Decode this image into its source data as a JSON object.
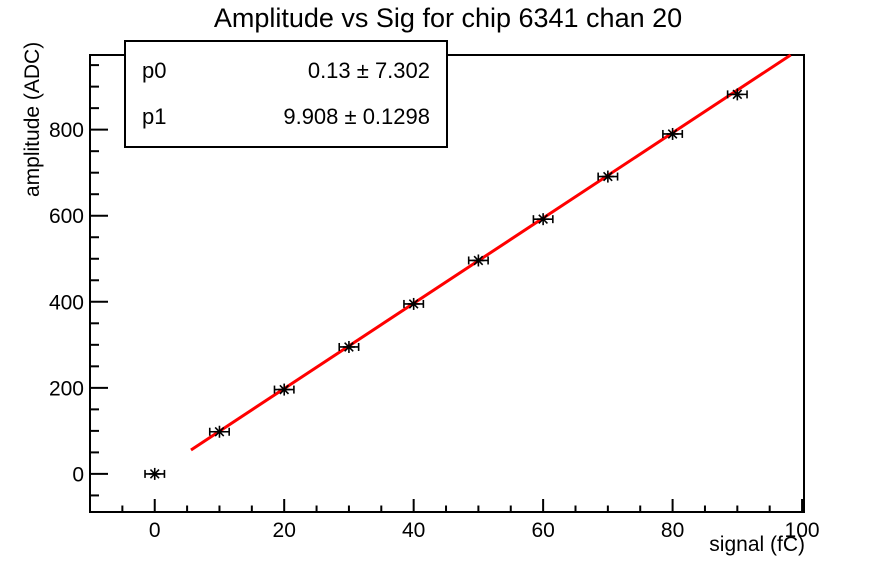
{
  "stats_box": {
    "rows": [
      {
        "param": "p0",
        "value": "0.13 ± 7.302"
      },
      {
        "param": "p1",
        "value": "9.908 ± 0.1298"
      }
    ]
  },
  "chart_data": {
    "type": "scatter",
    "title": "Amplitude vs Sig for chip 6341 chan 20",
    "xlabel": "signal (fC)",
    "ylabel": "amplitude (ADC)",
    "x": [
      0,
      10,
      20,
      30,
      40,
      50,
      60,
      70,
      80,
      90
    ],
    "y": [
      0,
      98,
      196,
      295,
      395,
      496,
      592,
      691,
      790,
      882
    ],
    "x_error": 1.5,
    "marker": "asterisk",
    "marker_color": "#000000",
    "fit": {
      "type": "linear",
      "p0": 0.13,
      "p0_error": 7.302,
      "p1": 9.908,
      "p1_error": 0.1298,
      "x_start": 5.6,
      "color": "#ff0000"
    },
    "xlim": [
      -10,
      100.3
    ],
    "ylim": [
      -88.5,
      973.5
    ],
    "x_major_ticks": [
      0,
      20,
      40,
      60,
      80,
      100
    ],
    "x_minor_step": 5,
    "y_major_ticks": [
      0,
      200,
      400,
      600,
      800
    ],
    "y_minor_step": 50,
    "grid": false,
    "frame_color": "#000000",
    "background_color": "#ffffff"
  }
}
